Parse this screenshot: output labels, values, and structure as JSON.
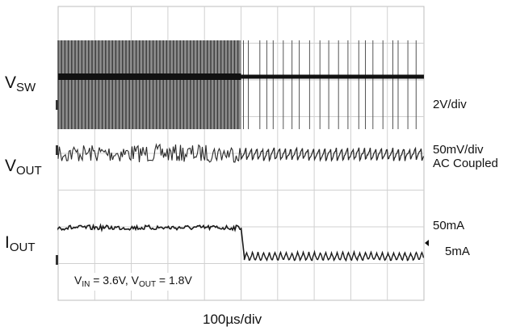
{
  "chart_data": {
    "type": "line",
    "title": "",
    "xlabel": "",
    "ylabel": "",
    "grid": true,
    "time_scale": "100µs/div",
    "time_scale_label": "100µs/div",
    "divisions": {
      "x": 10,
      "y": 8
    },
    "load_step_division": 5,
    "channels": [
      {
        "name": "VSW",
        "label_main": "V",
        "label_sub": "SW",
        "scale": "2V/div",
        "marker": "C1",
        "color": "#1a1a1a"
      },
      {
        "name": "VOUT",
        "label_main": "V",
        "label_sub": "OUT",
        "scale": "50mV/div",
        "coupling": "AC Coupled",
        "marker": "C2",
        "color": "#1a1a1a"
      },
      {
        "name": "IOUT",
        "label_main": "I",
        "label_sub": "OUT",
        "level_high": "50mA",
        "level_low": "5mA",
        "marker": "C4",
        "color": "#1a1a1a"
      }
    ],
    "conditions": {
      "vin_main": "V",
      "vin_sub": "IN",
      "vin_value": " = 3.6V, ",
      "vout_main": "V",
      "vout_sub": "OUT",
      "vout_value": " = 1.8V"
    }
  }
}
